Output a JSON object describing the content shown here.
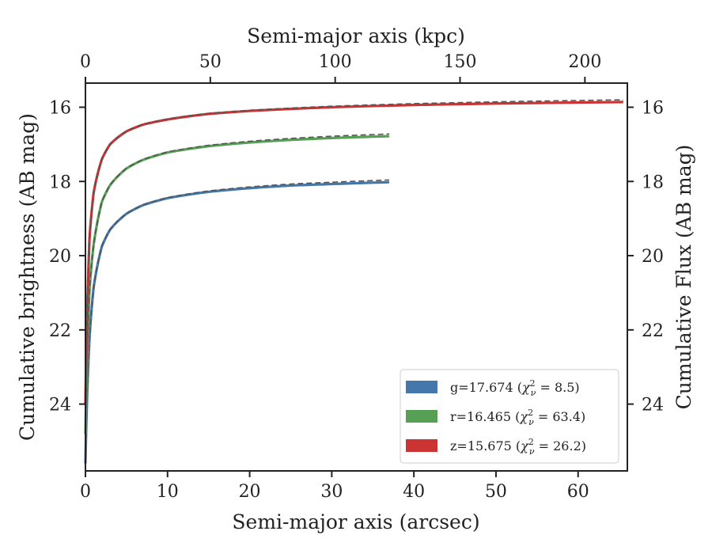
{
  "chart_data": {
    "type": "line",
    "xlabel": "Semi-major axis (arcsec)",
    "x2label": "Semi-major axis (kpc)",
    "ylabel": "Cumulative brightness (AB mag)",
    "y2label": "Cumulative Flux (AB mag)",
    "xlim": [
      0,
      66
    ],
    "x2lim": [
      0,
      217
    ],
    "ylim": [
      25.8,
      15.35
    ],
    "y_inverted": true,
    "x_ticks": [
      0,
      10,
      20,
      30,
      40,
      50,
      60
    ],
    "x_tick_labels": [
      "0",
      "10",
      "20",
      "30",
      "40",
      "50",
      "60"
    ],
    "x2_ticks": [
      0,
      50,
      100,
      150,
      200
    ],
    "x2_tick_labels": [
      "0",
      "50",
      "100",
      "150",
      "200"
    ],
    "y_ticks": [
      16,
      18,
      20,
      22,
      24
    ],
    "y_tick_labels": [
      "16",
      "18",
      "20",
      "22",
      "24"
    ],
    "legend_position": "lower-right",
    "grid": false,
    "model_line_color": "#555555",
    "series": [
      {
        "name": "g=17.674 (χ²ν = 8.5)",
        "legend": {
          "main": "g=17.674 (",
          "chi": "χ",
          "sup": "2",
          "sub": "ν",
          "rest": " = 8.5)"
        },
        "color": "#4477aa",
        "x_max": 37,
        "x": [
          0,
          0.5,
          1,
          2,
          3,
          5,
          7,
          10,
          15,
          20,
          25,
          30,
          37
        ],
        "y": [
          25.6,
          22.2,
          20.85,
          19.75,
          19.3,
          18.87,
          18.64,
          18.45,
          18.28,
          18.18,
          18.11,
          18.07,
          18.02
        ]
      },
      {
        "name": "r=16.465 (χ²ν = 63.4)",
        "legend": {
          "main": "r=16.465 (",
          "chi": "χ",
          "sup": "2",
          "sub": "ν",
          "rest": " = 63.4)"
        },
        "color": "#55a055",
        "x_max": 37,
        "x": [
          0,
          0.5,
          1,
          2,
          3,
          5,
          7,
          10,
          15,
          20,
          25,
          30,
          37
        ],
        "y": [
          24.8,
          20.9,
          19.7,
          18.55,
          18.1,
          17.65,
          17.42,
          17.22,
          17.05,
          16.95,
          16.88,
          16.83,
          16.78
        ]
      },
      {
        "name": "z=15.675 (χ²ν = 26.2)",
        "legend": {
          "main": "z=15.675 (",
          "chi": "χ",
          "sup": "2",
          "sub": "ν",
          "rest": " = 26.2)"
        },
        "color": "#cc3333",
        "x_max": 65.5,
        "x": [
          0,
          0.5,
          1,
          2,
          3,
          5,
          7,
          10,
          15,
          20,
          30,
          40,
          50,
          65.5
        ],
        "y": [
          24.0,
          19.5,
          18.3,
          17.4,
          17.0,
          16.65,
          16.47,
          16.33,
          16.18,
          16.1,
          16.0,
          15.94,
          15.9,
          15.86
        ]
      }
    ]
  }
}
